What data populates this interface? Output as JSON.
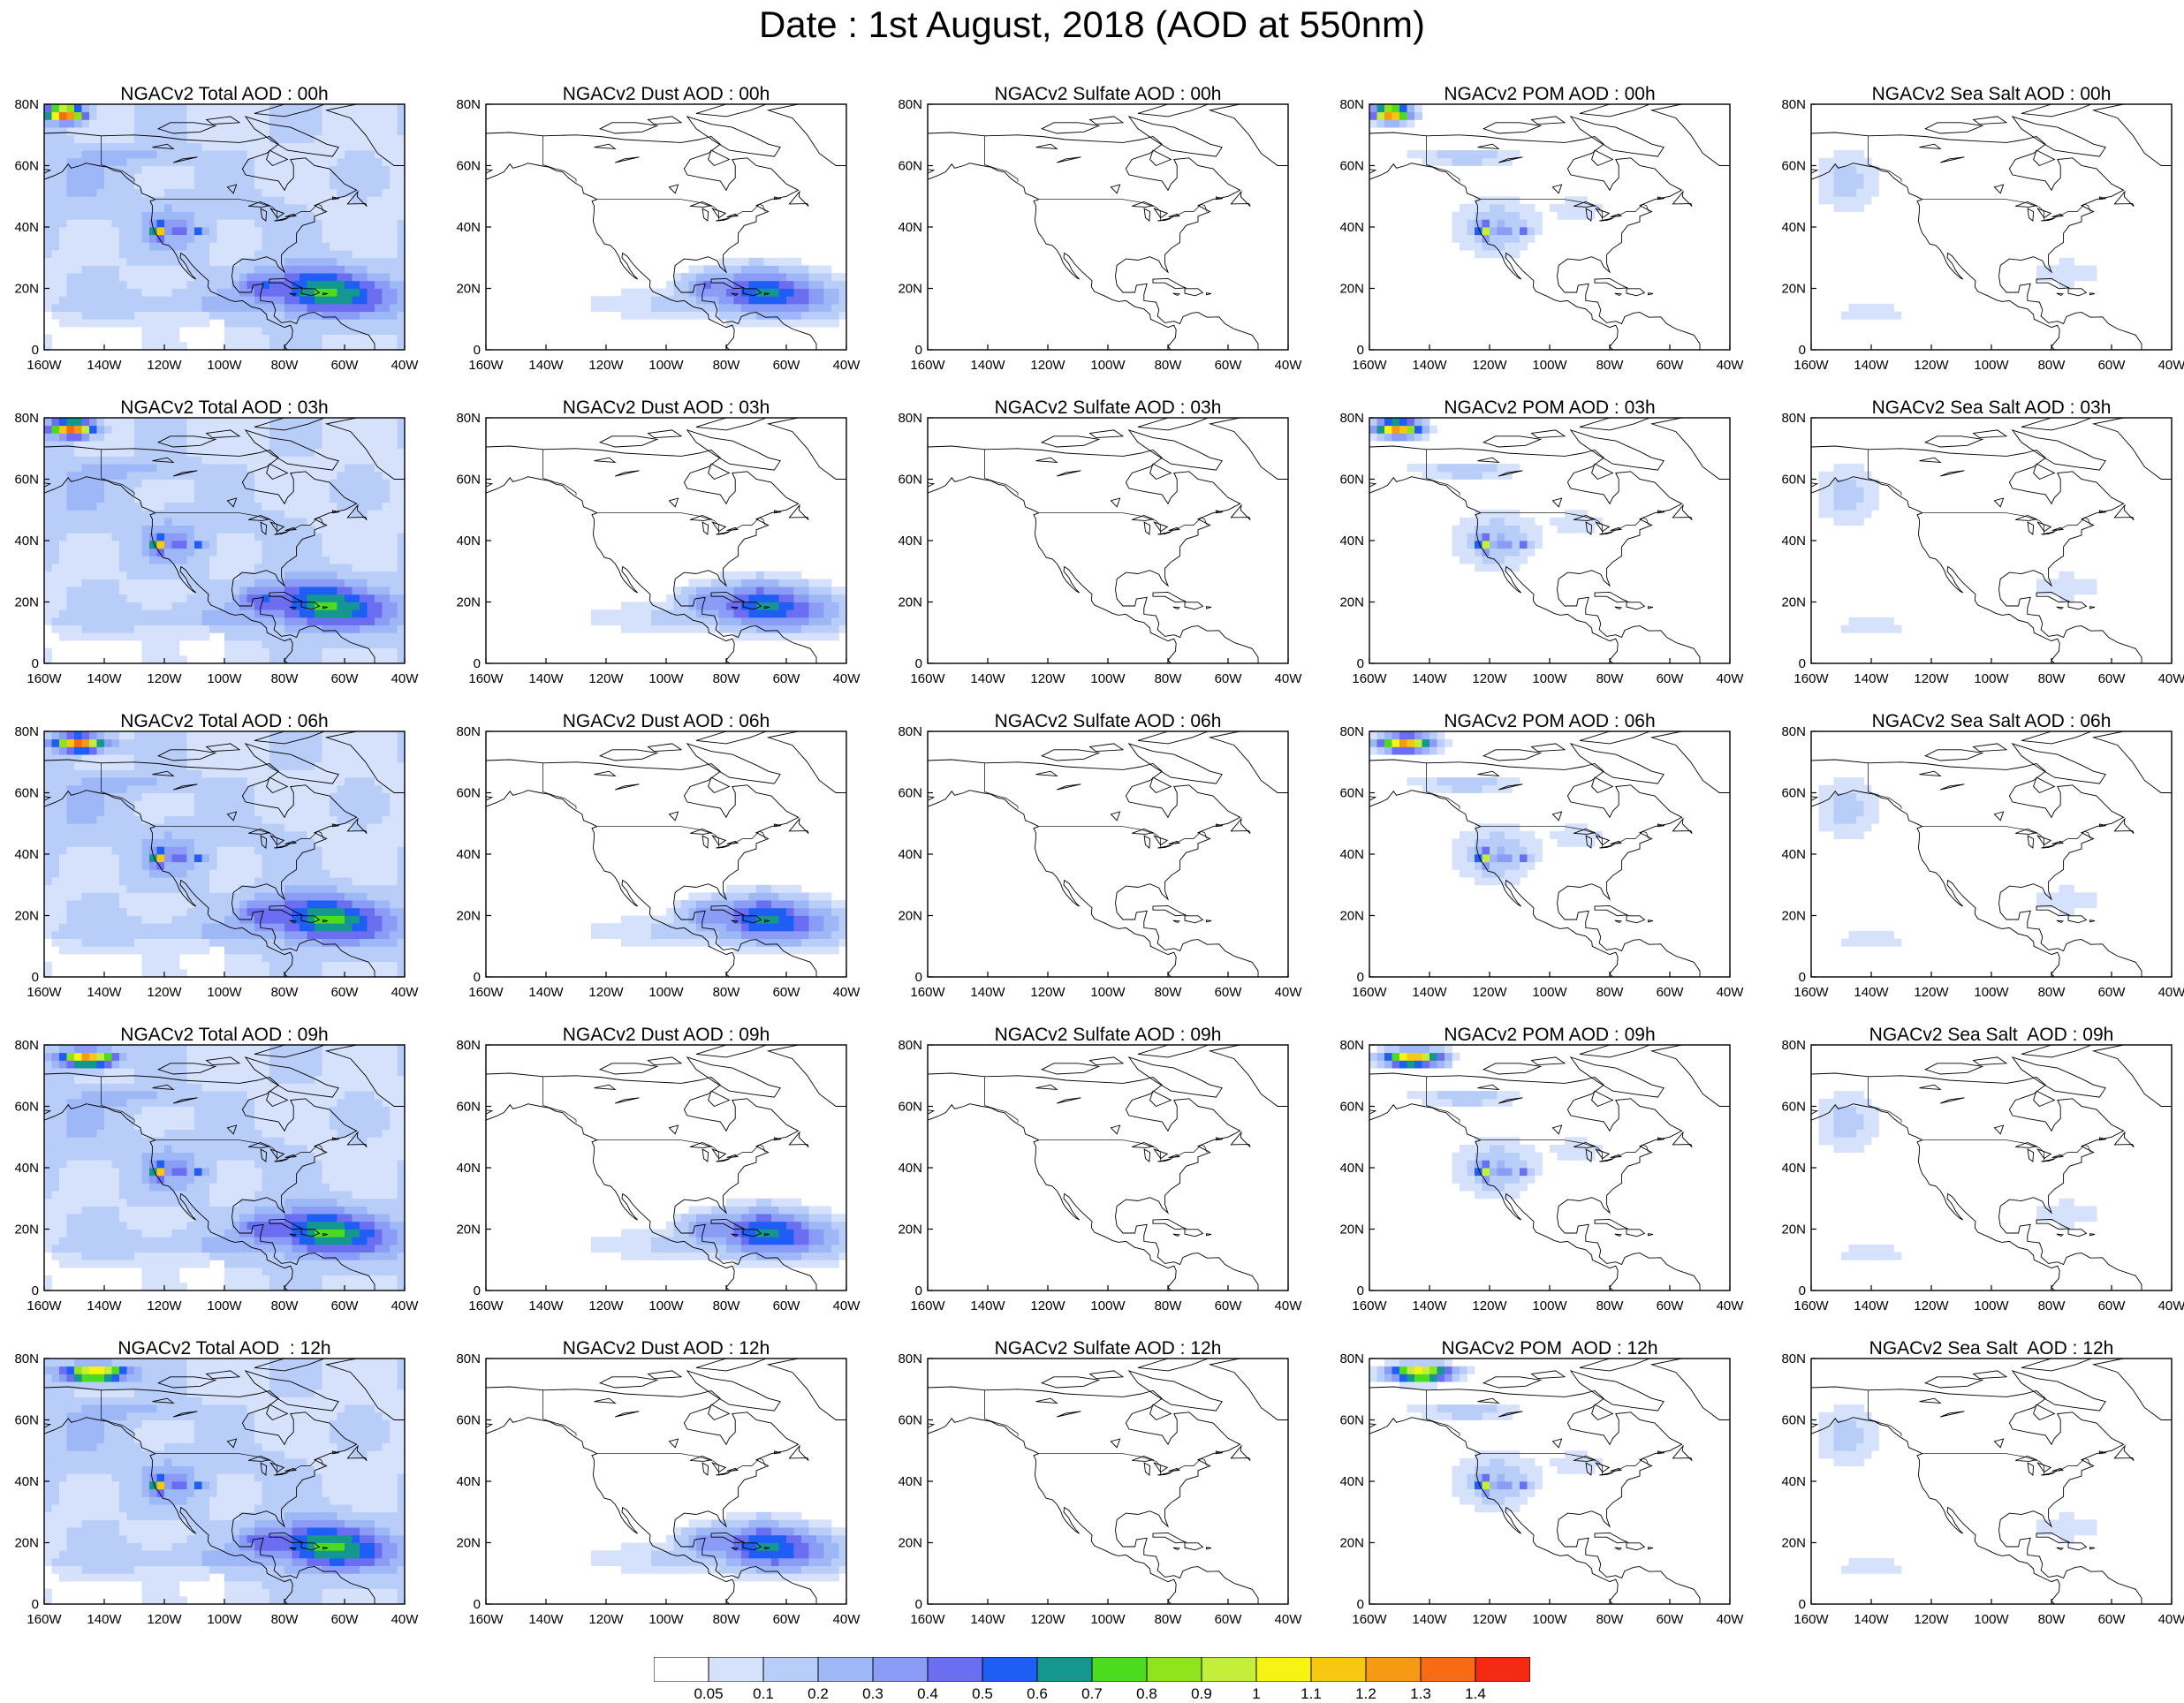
{
  "title": "Date : 1st August, 2018 (AOD at 550nm)",
  "panels": [
    [
      {
        "title": "NGACv2 Total AOD : 00h",
        "field": "total",
        "hour": 0
      },
      {
        "title": "NGACv2 Dust AOD : 00h",
        "field": "dust",
        "hour": 0
      },
      {
        "title": "NGACv2 Sulfate AOD : 00h",
        "field": "sulfate",
        "hour": 0
      },
      {
        "title": "NGACv2 POM AOD : 00h",
        "field": "pom",
        "hour": 0
      },
      {
        "title": "NGACv2 Sea Salt AOD : 00h",
        "field": "seasalt",
        "hour": 0
      }
    ],
    [
      {
        "title": "NGACv2 Total AOD : 03h",
        "field": "total",
        "hour": 3
      },
      {
        "title": "NGACv2 Dust AOD : 03h",
        "field": "dust",
        "hour": 3
      },
      {
        "title": "NGACv2 Sulfate AOD : 03h",
        "field": "sulfate",
        "hour": 3
      },
      {
        "title": "NGACv2 POM AOD : 03h",
        "field": "pom",
        "hour": 3
      },
      {
        "title": "NGACv2 Sea Salt AOD : 03h",
        "field": "seasalt",
        "hour": 3
      }
    ],
    [
      {
        "title": "NGACv2 Total AOD : 06h",
        "field": "total",
        "hour": 6
      },
      {
        "title": "NGACv2 Dust AOD : 06h",
        "field": "dust",
        "hour": 6
      },
      {
        "title": "NGACv2 Sulfate AOD : 06h",
        "field": "sulfate",
        "hour": 6
      },
      {
        "title": "NGACv2 POM AOD : 06h",
        "field": "pom",
        "hour": 6
      },
      {
        "title": "NGACv2 Sea Salt AOD : 06h",
        "field": "seasalt",
        "hour": 6
      }
    ],
    [
      {
        "title": "NGACv2 Total AOD : 09h",
        "field": "total",
        "hour": 9
      },
      {
        "title": "NGACv2 Dust AOD : 09h",
        "field": "dust",
        "hour": 9
      },
      {
        "title": "NGACv2 Sulfate AOD : 09h",
        "field": "sulfate",
        "hour": 9
      },
      {
        "title": "NGACv2 POM AOD : 09h",
        "field": "pom",
        "hour": 9
      },
      {
        "title": "NGACv2 Sea Salt  AOD : 09h",
        "field": "seasalt",
        "hour": 9
      }
    ],
    [
      {
        "title": "NGACv2 Total AOD  : 12h",
        "field": "total",
        "hour": 12
      },
      {
        "title": "NGACv2 Dust AOD : 12h",
        "field": "dust",
        "hour": 12
      },
      {
        "title": "NGACv2 Sulfate AOD : 12h",
        "field": "sulfate",
        "hour": 12
      },
      {
        "title": "NGACv2 POM  AOD : 12h",
        "field": "pom",
        "hour": 12
      },
      {
        "title": "NGACv2 Sea Salt  AOD : 12h",
        "field": "seasalt",
        "hour": 12
      }
    ]
  ],
  "lat_ticks": [
    "80N",
    "60N",
    "40N",
    "20N",
    "0"
  ],
  "lon_ticks": [
    "160W",
    "140W",
    "120W",
    "100W",
    "80W",
    "60W",
    "40W"
  ],
  "map_extent": {
    "lon": [
      -160,
      -40
    ],
    "lat": [
      0,
      80
    ]
  },
  "colorbar": {
    "colors": [
      "#ffffff",
      "#d6e2fb",
      "#b9cdf9",
      "#9db7f7",
      "#8a9cf5",
      "#6b6ef0",
      "#1e5ef5",
      "#14978f",
      "#4bdc1e",
      "#8fe41c",
      "#c3ee3a",
      "#f7f313",
      "#f8c811",
      "#f79a13",
      "#f66b14",
      "#f42a12"
    ],
    "labels": [
      "0.05",
      "0.1",
      "0.2",
      "0.3",
      "0.4",
      "0.5",
      "0.6",
      "0.7",
      "0.8",
      "0.9",
      "1",
      "1.1",
      "1.2",
      "1.3",
      "1.4"
    ]
  }
}
